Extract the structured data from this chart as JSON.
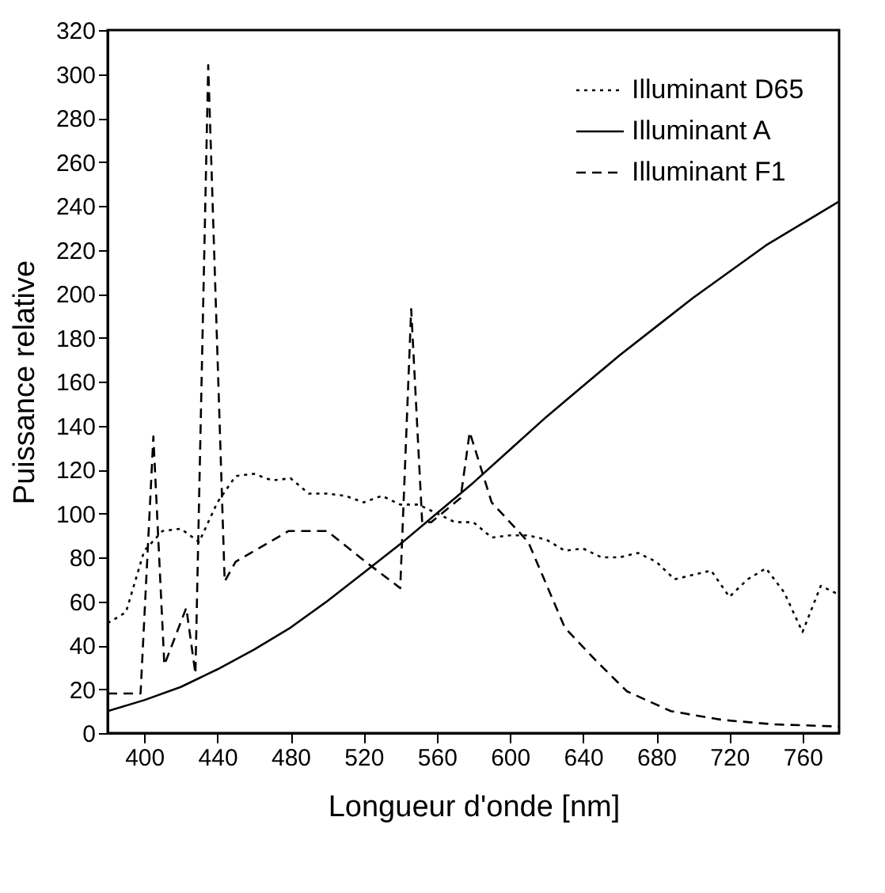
{
  "chart_data": {
    "type": "line",
    "xlabel": "Longueur d'onde [nm]",
    "ylabel": "Puissance relative",
    "xlim": [
      380,
      780
    ],
    "xticks": [
      400,
      440,
      480,
      520,
      560,
      600,
      640,
      680,
      720,
      760
    ],
    "ylim": [
      0,
      320
    ],
    "yticks": [
      0,
      20,
      40,
      60,
      80,
      100,
      120,
      140,
      160,
      180,
      200,
      220,
      240,
      260,
      280,
      300,
      320
    ],
    "grid": false,
    "legend": "top right",
    "series": [
      {
        "name": "Illuminant D65",
        "color": "#000000",
        "line_style": "dotted",
        "x": [
          380,
          390,
          400,
          410,
          420,
          430,
          440,
          450,
          460,
          470,
          480,
          490,
          500,
          510,
          520,
          530,
          540,
          550,
          560,
          570,
          580,
          590,
          600,
          610,
          620,
          630,
          640,
          650,
          660,
          670,
          680,
          690,
          700,
          710,
          720,
          730,
          740,
          750,
          760,
          770,
          780
        ],
        "values": [
          50,
          55,
          83,
          92,
          93,
          87,
          105,
          117,
          118,
          115,
          116,
          109,
          109,
          108,
          105,
          108,
          104,
          104,
          100,
          96,
          96,
          89,
          90,
          90,
          88,
          83,
          84,
          80,
          80,
          82,
          78,
          70,
          72,
          74,
          62,
          70,
          75,
          64,
          46,
          67,
          63
        ]
      },
      {
        "name": "Illuminant A",
        "color": "#000000",
        "line_style": "solid",
        "x": [
          380,
          400,
          420,
          440,
          460,
          480,
          500,
          520,
          540,
          560,
          580,
          600,
          620,
          640,
          660,
          680,
          700,
          720,
          740,
          760,
          780
        ],
        "values": [
          10,
          15,
          21,
          29,
          38,
          48,
          60,
          73,
          86,
          100,
          114,
          129,
          144,
          158,
          172,
          185,
          198,
          210,
          222,
          232,
          242
        ]
      },
      {
        "name": "Illuminant F1",
        "color": "#000000",
        "line_style": "dashed",
        "x": [
          380,
          390,
          398,
          405,
          411,
          423,
          428,
          435,
          444,
          450,
          479,
          500,
          521,
          540,
          546,
          552,
          557,
          573,
          578,
          590,
          610,
          630,
          647,
          664,
          688,
          716,
          744,
          780
        ],
        "values": [
          18,
          18,
          18,
          135,
          31,
          57,
          27,
          304,
          69,
          78,
          92,
          92,
          78,
          66,
          193,
          96,
          96,
          107,
          137,
          105,
          87,
          48,
          33,
          19,
          10,
          6,
          4,
          3
        ]
      }
    ]
  }
}
